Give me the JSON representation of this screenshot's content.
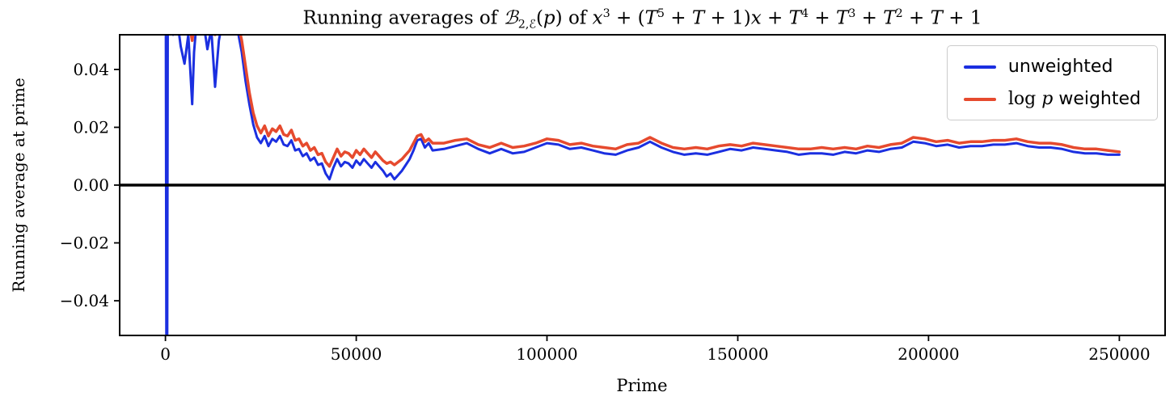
{
  "figure": {
    "background": "#ffffff",
    "frame_color": "#000000"
  },
  "chart_data": {
    "type": "line",
    "title": "Running averages of B_{2,E}(p) of x^3 + (T^5 + T + 1)x + T^4 + T^3 + T^2 + T + 1",
    "title_segments": [
      {
        "t": "Running averages of "
      },
      {
        "cal": "ℬ"
      },
      {
        "sub": "2,ℰ"
      },
      {
        "t": "("
      },
      {
        "i": "p"
      },
      {
        "t": ") of "
      },
      {
        "i": "x"
      },
      {
        "sup": "3"
      },
      {
        "t": " + ("
      },
      {
        "i": "T"
      },
      {
        "sup": "5"
      },
      {
        "t": " + "
      },
      {
        "i": "T"
      },
      {
        "t": " + 1)"
      },
      {
        "i": "x"
      },
      {
        "t": " + "
      },
      {
        "i": "T"
      },
      {
        "sup": "4"
      },
      {
        "t": " + "
      },
      {
        "i": "T"
      },
      {
        "sup": "3"
      },
      {
        "t": " + "
      },
      {
        "i": "T"
      },
      {
        "sup": "2"
      },
      {
        "t": " + "
      },
      {
        "i": "T"
      },
      {
        "t": " + 1"
      }
    ],
    "xlabel": "Prime",
    "ylabel": "Running average at prime",
    "xlim": [
      -12000,
      262000
    ],
    "ylim": [
      -0.052,
      0.052
    ],
    "grid": false,
    "x_ticks": {
      "values": [
        0,
        50000,
        100000,
        150000,
        200000,
        250000
      ],
      "labels": [
        "0",
        "50000",
        "100000",
        "150000",
        "200000",
        "250000"
      ]
    },
    "y_ticks": {
      "values": [
        0.04,
        0.02,
        0,
        -0.02,
        -0.04
      ],
      "labels": [
        "0.04",
        "0.02",
        "0.00",
        "−0.02",
        "−0.04"
      ]
    },
    "zero_line": {
      "y": 0,
      "color": "#000000"
    },
    "legend": {
      "position": "upper right",
      "entries": [
        "unweighted",
        "log p weighted"
      ]
    },
    "x": [
      100,
      250,
      350,
      450,
      600,
      800,
      1000,
      2000,
      3000,
      4000,
      5000,
      6000,
      7000,
      7500,
      8000,
      9000,
      10000,
      11000,
      12000,
      13000,
      14000,
      15000,
      16000,
      17000,
      18000,
      19000,
      20000,
      21000,
      22000,
      23000,
      24000,
      25000,
      26000,
      27000,
      28000,
      29000,
      30000,
      31000,
      32000,
      33000,
      34000,
      35000,
      36000,
      37000,
      38000,
      39000,
      40000,
      41000,
      42000,
      43000,
      44000,
      45000,
      46000,
      47000,
      48000,
      49000,
      50000,
      51000,
      52000,
      53000,
      54000,
      55000,
      56000,
      57000,
      58000,
      59000,
      60000,
      61000,
      62000,
      63000,
      64000,
      65000,
      66000,
      67000,
      68000,
      69000,
      70000,
      73000,
      76000,
      79000,
      82000,
      85000,
      88000,
      91000,
      94000,
      97000,
      100000,
      103000,
      106000,
      109000,
      112000,
      115000,
      118000,
      121000,
      124000,
      127000,
      130000,
      133000,
      136000,
      139000,
      142000,
      145000,
      148000,
      151000,
      154000,
      157000,
      160000,
      163000,
      166000,
      169000,
      172000,
      175000,
      178000,
      181000,
      184000,
      187000,
      190000,
      193000,
      196000,
      199000,
      202000,
      205000,
      208000,
      211000,
      214000,
      217000,
      220000,
      223000,
      226000,
      229000,
      232000,
      235000,
      238000,
      241000,
      244000,
      247000,
      250000
    ],
    "series": [
      {
        "name": "unweighted",
        "color": "#1b2fe0",
        "line_width": 3,
        "label_segments": [
          {
            "t": "unweighted"
          }
        ],
        "values": [
          0.06,
          -0.06,
          0.06,
          -0.055,
          0.06,
          0.055,
          0.06,
          0.052,
          0.058,
          0.048,
          0.042,
          0.052,
          0.028,
          0.046,
          0.054,
          0.06,
          0.056,
          0.047,
          0.054,
          0.034,
          0.05,
          0.057,
          0.06,
          0.058,
          0.056,
          0.053,
          0.046,
          0.036,
          0.028,
          0.021,
          0.0165,
          0.0145,
          0.017,
          0.0135,
          0.016,
          0.015,
          0.017,
          0.014,
          0.0135,
          0.0155,
          0.012,
          0.0125,
          0.01,
          0.011,
          0.0085,
          0.0095,
          0.007,
          0.0075,
          0.004,
          0.002,
          0.006,
          0.009,
          0.0065,
          0.008,
          0.0075,
          0.006,
          0.0085,
          0.007,
          0.009,
          0.0075,
          0.006,
          0.008,
          0.0065,
          0.005,
          0.003,
          0.004,
          0.002,
          0.0035,
          0.005,
          0.007,
          0.009,
          0.012,
          0.0155,
          0.016,
          0.013,
          0.0145,
          0.012,
          0.0125,
          0.0135,
          0.0145,
          0.0125,
          0.011,
          0.0125,
          0.011,
          0.0115,
          0.013,
          0.0145,
          0.014,
          0.0125,
          0.013,
          0.012,
          0.011,
          0.0105,
          0.012,
          0.013,
          0.015,
          0.013,
          0.0115,
          0.0105,
          0.011,
          0.0105,
          0.0115,
          0.0125,
          0.012,
          0.013,
          0.0125,
          0.012,
          0.0115,
          0.0105,
          0.011,
          0.011,
          0.0105,
          0.0115,
          0.011,
          0.012,
          0.0115,
          0.0125,
          0.013,
          0.015,
          0.0145,
          0.0135,
          0.014,
          0.013,
          0.0135,
          0.0135,
          0.014,
          0.014,
          0.0145,
          0.0135,
          0.013,
          0.013,
          0.0125,
          0.0115,
          0.011,
          0.011,
          0.0105,
          0.0105
        ]
      },
      {
        "name": "log p weighted",
        "color": "#e64a2e",
        "line_width": 3.5,
        "label_segments": [
          {
            "m": "log "
          },
          {
            "i": "p"
          },
          {
            "t": " weighted"
          }
        ],
        "values": [
          0.06,
          0.06,
          0.06,
          0.06,
          0.06,
          0.06,
          0.06,
          0.06,
          0.06,
          0.058,
          0.055,
          0.058,
          0.05,
          0.056,
          0.058,
          0.06,
          0.059,
          0.056,
          0.058,
          0.052,
          0.057,
          0.059,
          0.06,
          0.059,
          0.058,
          0.056,
          0.05,
          0.041,
          0.032,
          0.025,
          0.0205,
          0.018,
          0.0205,
          0.017,
          0.0195,
          0.0185,
          0.0205,
          0.0175,
          0.017,
          0.019,
          0.0155,
          0.016,
          0.0135,
          0.0145,
          0.012,
          0.013,
          0.0105,
          0.011,
          0.008,
          0.0065,
          0.0095,
          0.0125,
          0.01,
          0.0115,
          0.011,
          0.0095,
          0.012,
          0.0105,
          0.0125,
          0.011,
          0.0095,
          0.0115,
          0.01,
          0.0085,
          0.0075,
          0.008,
          0.007,
          0.008,
          0.009,
          0.0105,
          0.012,
          0.0145,
          0.017,
          0.0175,
          0.015,
          0.016,
          0.0145,
          0.0145,
          0.0155,
          0.016,
          0.014,
          0.013,
          0.0145,
          0.013,
          0.0135,
          0.0145,
          0.016,
          0.0155,
          0.014,
          0.0145,
          0.0135,
          0.013,
          0.0125,
          0.014,
          0.0145,
          0.0165,
          0.0145,
          0.013,
          0.0125,
          0.013,
          0.0125,
          0.0135,
          0.014,
          0.0135,
          0.0145,
          0.014,
          0.0135,
          0.013,
          0.0125,
          0.0125,
          0.013,
          0.0125,
          0.013,
          0.0125,
          0.0135,
          0.013,
          0.014,
          0.0145,
          0.0165,
          0.016,
          0.015,
          0.0155,
          0.0145,
          0.015,
          0.015,
          0.0155,
          0.0155,
          0.016,
          0.015,
          0.0145,
          0.0145,
          0.014,
          0.013,
          0.0125,
          0.0125,
          0.012,
          0.0115
        ]
      }
    ]
  }
}
